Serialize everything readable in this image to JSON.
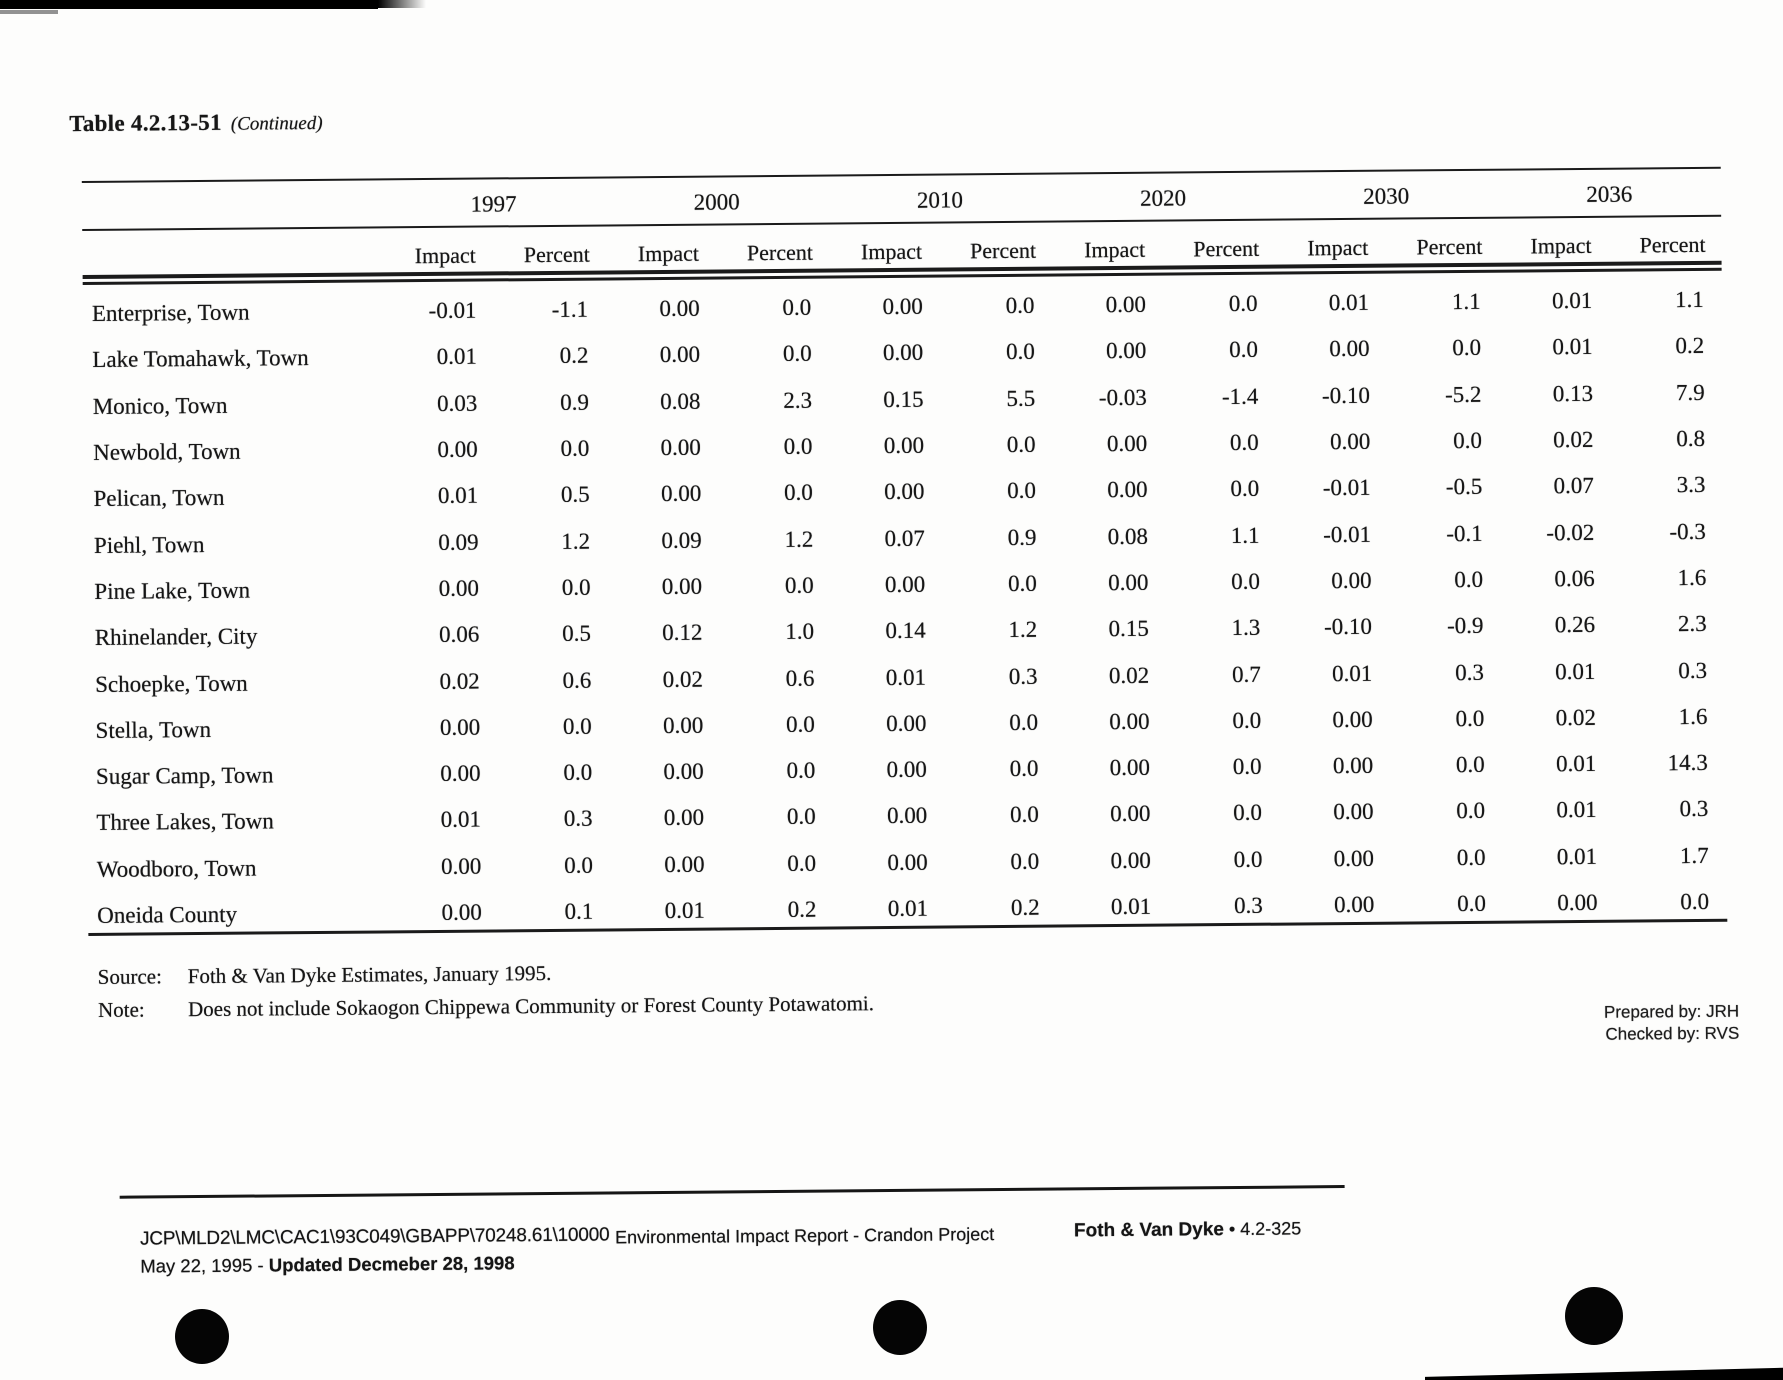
{
  "page": {
    "title": "Table 4.2.13-51",
    "title_suffix": "(Continued)"
  },
  "table": {
    "year_groups": [
      "1997",
      "2000",
      "2010",
      "2020",
      "2030",
      "2036"
    ],
    "sub_headers": [
      "Impact",
      "Percent"
    ],
    "rows": [
      {
        "name": "Enterprise, Town",
        "values": [
          "-0.01",
          "-1.1",
          "0.00",
          "0.0",
          "0.00",
          "0.0",
          "0.00",
          "0.0",
          "0.01",
          "1.1",
          "0.01",
          "1.1"
        ]
      },
      {
        "name": "Lake Tomahawk, Town",
        "values": [
          "0.01",
          "0.2",
          "0.00",
          "0.0",
          "0.00",
          "0.0",
          "0.00",
          "0.0",
          "0.00",
          "0.0",
          "0.01",
          "0.2"
        ]
      },
      {
        "name": "Monico, Town",
        "values": [
          "0.03",
          "0.9",
          "0.08",
          "2.3",
          "0.15",
          "5.5",
          "-0.03",
          "-1.4",
          "-0.10",
          "-5.2",
          "0.13",
          "7.9"
        ]
      },
      {
        "name": "Newbold, Town",
        "values": [
          "0.00",
          "0.0",
          "0.00",
          "0.0",
          "0.00",
          "0.0",
          "0.00",
          "0.0",
          "0.00",
          "0.0",
          "0.02",
          "0.8"
        ]
      },
      {
        "name": "Pelican, Town",
        "values": [
          "0.01",
          "0.5",
          "0.00",
          "0.0",
          "0.00",
          "0.0",
          "0.00",
          "0.0",
          "-0.01",
          "-0.5",
          "0.07",
          "3.3"
        ]
      },
      {
        "name": "Piehl, Town",
        "values": [
          "0.09",
          "1.2",
          "0.09",
          "1.2",
          "0.07",
          "0.9",
          "0.08",
          "1.1",
          "-0.01",
          "-0.1",
          "-0.02",
          "-0.3"
        ]
      },
      {
        "name": "Pine Lake, Town",
        "values": [
          "0.00",
          "0.0",
          "0.00",
          "0.0",
          "0.00",
          "0.0",
          "0.00",
          "0.0",
          "0.00",
          "0.0",
          "0.06",
          "1.6"
        ]
      },
      {
        "name": "Rhinelander, City",
        "values": [
          "0.06",
          "0.5",
          "0.12",
          "1.0",
          "0.14",
          "1.2",
          "0.15",
          "1.3",
          "-0.10",
          "-0.9",
          "0.26",
          "2.3"
        ]
      },
      {
        "name": "Schoepke, Town",
        "values": [
          "0.02",
          "0.6",
          "0.02",
          "0.6",
          "0.01",
          "0.3",
          "0.02",
          "0.7",
          "0.01",
          "0.3",
          "0.01",
          "0.3"
        ]
      },
      {
        "name": "Stella, Town",
        "values": [
          "0.00",
          "0.0",
          "0.00",
          "0.0",
          "0.00",
          "0.0",
          "0.00",
          "0.0",
          "0.00",
          "0.0",
          "0.02",
          "1.6"
        ]
      },
      {
        "name": "Sugar Camp, Town",
        "values": [
          "0.00",
          "0.0",
          "0.00",
          "0.0",
          "0.00",
          "0.0",
          "0.00",
          "0.0",
          "0.00",
          "0.0",
          "0.01",
          "14.3"
        ]
      },
      {
        "name": "Three Lakes, Town",
        "values": [
          "0.01",
          "0.3",
          "0.00",
          "0.0",
          "0.00",
          "0.0",
          "0.00",
          "0.0",
          "0.00",
          "0.0",
          "0.01",
          "0.3"
        ]
      },
      {
        "name": "Woodboro, Town",
        "values": [
          "0.00",
          "0.0",
          "0.00",
          "0.0",
          "0.00",
          "0.0",
          "0.00",
          "0.0",
          "0.00",
          "0.0",
          "0.01",
          "1.7"
        ]
      },
      {
        "name": "Oneida County",
        "values": [
          "0.00",
          "0.1",
          "0.01",
          "0.2",
          "0.01",
          "0.2",
          "0.01",
          "0.3",
          "0.00",
          "0.0",
          "0.00",
          "0.0"
        ]
      }
    ]
  },
  "notes": {
    "source_label": "Source:",
    "source_text": "Foth & Van Dyke Estimates, January 1995.",
    "note_label": "Note:",
    "note_text": "Does not include Sokaogon Chippewa Community or Forest County Potawatomi."
  },
  "credits": {
    "prepared": "Prepared by: JRH",
    "checked": "Checked by: RVS"
  },
  "footer": {
    "path": "JCP\\MLD2\\LMC\\CAC1\\93C049\\GBAPP\\70248.61\\10000",
    "date_prefix": "May 22, 1995 - ",
    "date_updated": "Updated Decmeber 28, 1998",
    "center": "Environmental Impact Report - Crandon Project",
    "right_bold": "Foth & Van Dyke",
    "right_rest": " • 4.2-325"
  }
}
